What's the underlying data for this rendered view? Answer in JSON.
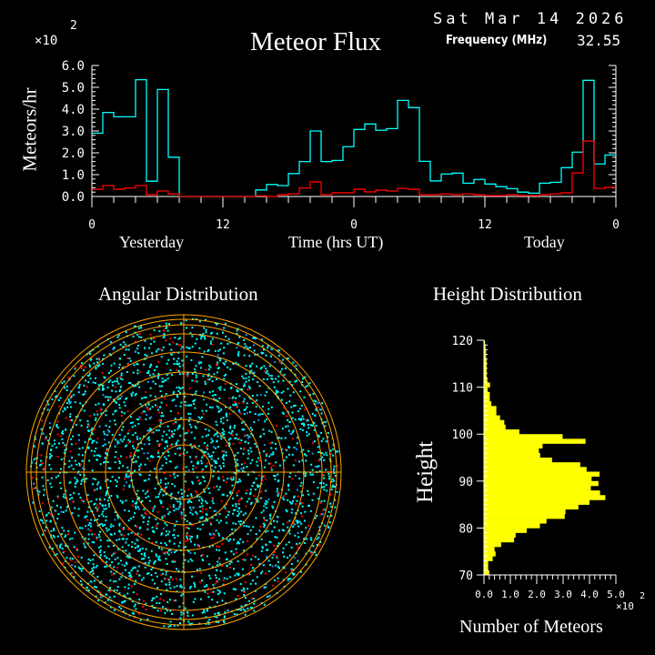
{
  "header": {
    "date": "Sat Mar 14 2026",
    "title": "Meteor Flux",
    "frequency_label": "Frequency (MHz)",
    "frequency_value": "32.55"
  },
  "chart_data": [
    {
      "type": "line",
      "title": "Meteor Flux",
      "ylabel": "Meteors/hr",
      "xlabel": "Time (hrs UT)",
      "x_group_labels": [
        "Yesterday",
        "Today"
      ],
      "y_multiplier": "×10",
      "y_multiplier_exp": "2",
      "ylim": [
        0,
        6
      ],
      "xlim": [
        0,
        48
      ],
      "y_tick_labels": [
        "0.0",
        "1.0",
        "2.0",
        "3.0",
        "4.0",
        "5.0",
        "6.0"
      ],
      "x_tick_labels": [
        "0",
        "12",
        "0",
        "12",
        "0"
      ],
      "x_hours": [
        0,
        1,
        2,
        3,
        4,
        5,
        6,
        7,
        8,
        9,
        10,
        11,
        12,
        13,
        14,
        15,
        16,
        17,
        18,
        19,
        20,
        21,
        22,
        23,
        24,
        25,
        26,
        27,
        28,
        29,
        30,
        31,
        32,
        33,
        34,
        35,
        36,
        37,
        38,
        39,
        40,
        41,
        42,
        43,
        44,
        45,
        46,
        47
      ],
      "series": [
        {
          "color": "#00ffff",
          "values": [
            2.9,
            3.85,
            3.65,
            3.65,
            5.35,
            0.7,
            4.9,
            1.8,
            0,
            0,
            0,
            0,
            0,
            0,
            0,
            0.3,
            0.55,
            0.5,
            1.05,
            1.6,
            3.0,
            1.6,
            1.65,
            2.28,
            3.07,
            3.32,
            3.03,
            3.11,
            4.4,
            4.07,
            1.61,
            0.71,
            1.03,
            1.07,
            0.61,
            0.78,
            0.57,
            0.45,
            0.36,
            0.2,
            0.15,
            0.61,
            0.65,
            1.32,
            2.03,
            5.32,
            1.49,
            1.9
          ]
        },
        {
          "color": "#ff0000",
          "values": [
            0.33,
            0.5,
            0.33,
            0.39,
            0.5,
            0.08,
            0.25,
            0.12,
            0,
            0,
            0,
            0,
            0,
            0,
            0,
            0.03,
            0,
            0.08,
            0.12,
            0.39,
            0.67,
            0.08,
            0.17,
            0.17,
            0.33,
            0.21,
            0.29,
            0.25,
            0.37,
            0.33,
            0.08,
            0.08,
            0.12,
            0.08,
            0.12,
            0.08,
            0.04,
            0.04,
            0.08,
            0.04,
            0.04,
            0.08,
            0.12,
            0.17,
            1.08,
            2.54,
            0.37,
            0.42
          ]
        }
      ]
    },
    {
      "type": "scatter",
      "title": "Angular Distribution",
      "colors": {
        "grid": "#ffa500",
        "meteors": "#00ffff",
        "meteors_alt": "#ff0000",
        "meteors_low": "#1e90ff"
      }
    },
    {
      "type": "bar",
      "orientation": "horizontal",
      "title": "Height Distribution",
      "ylabel": "Height",
      "xlabel": "Number of Meteors",
      "x_multiplier": "×10",
      "x_multiplier_exp": "2",
      "xlim": [
        0,
        5
      ],
      "ylim": [
        70,
        120
      ],
      "x_tick_labels": [
        "0.0",
        "1.0",
        "2.0",
        "3.0",
        "4.0",
        "5.0"
      ],
      "y_tick_labels": [
        "70",
        "80",
        "90",
        "100",
        "110",
        "120"
      ],
      "color": "#ffff00",
      "heights": [
        70,
        71,
        72,
        73,
        74,
        75,
        76,
        77,
        78,
        79,
        80,
        81,
        82,
        83,
        84,
        85,
        86,
        87,
        88,
        89,
        90,
        91,
        92,
        93,
        94,
        95,
        96,
        97,
        98,
        99,
        100,
        101,
        102,
        103,
        104,
        105,
        106,
        107,
        108,
        109,
        110,
        111,
        112,
        113,
        114,
        115,
        116,
        117,
        118,
        119
      ],
      "values": [
        0.2,
        0.16,
        0.16,
        0.33,
        0.44,
        0.4,
        0.65,
        1.14,
        1.2,
        1.62,
        2.12,
        2.37,
        3.06,
        3.09,
        3.58,
        4.0,
        4.6,
        4.4,
        4.05,
        4.34,
        4.08,
        4.38,
        3.89,
        3.65,
        2.58,
        2.13,
        2.08,
        2.22,
        3.85,
        2.98,
        1.34,
        0.82,
        0.77,
        0.61,
        0.47,
        0.47,
        0.28,
        0.22,
        0.22,
        0.14,
        0.23,
        0.13,
        0.1,
        0.1,
        0.1,
        0.1,
        0.08,
        0.08,
        0.06,
        0.04
      ]
    }
  ]
}
